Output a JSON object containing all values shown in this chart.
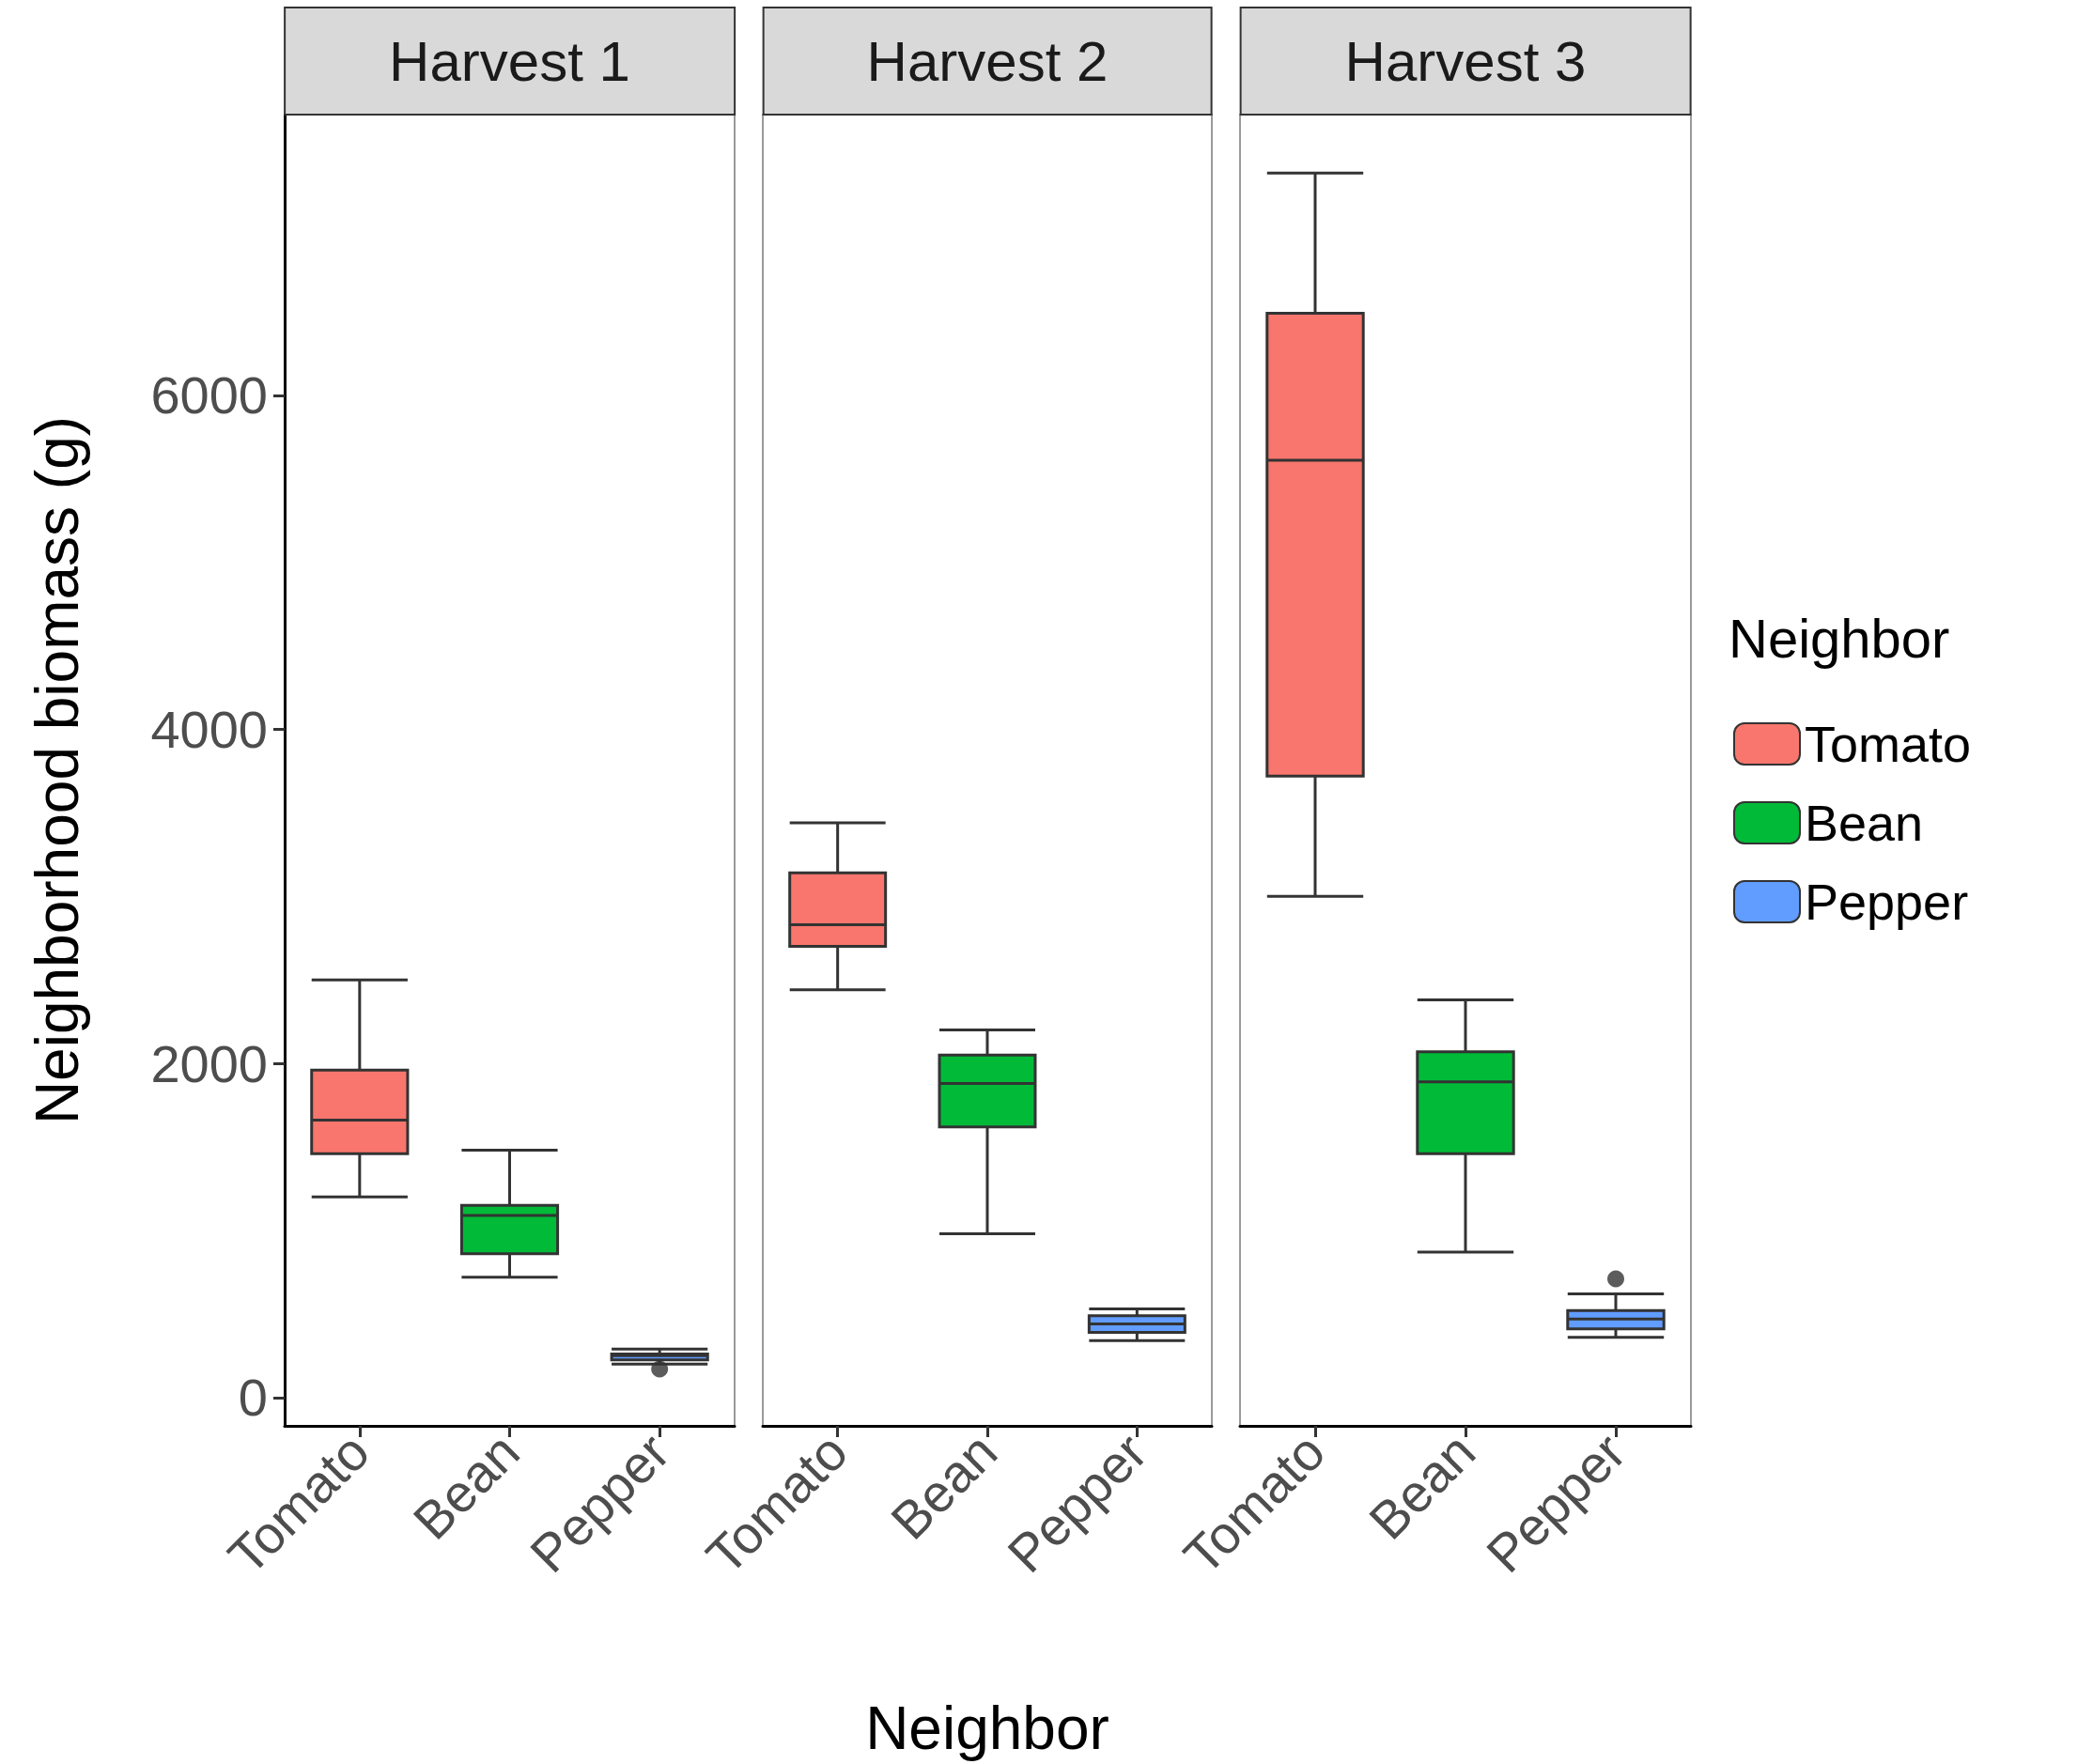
{
  "chart_data": [
    {
      "type": "box",
      "title": "Harvest 1",
      "ylabel": "Neighborhood biomass (g)",
      "categories": [
        "Tomato",
        "Bean",
        "Pepper"
      ],
      "series": [
        {
          "color": "#f8766d",
          "boxes": [
            {
              "low": 1200,
              "q1": 1460,
              "median": 1660,
              "q3": 1960,
              "high": 2500
            },
            null,
            null
          ]
        },
        {
          "color": "#00ba38",
          "boxes": [
            null,
            {
              "low": 720,
              "q1": 860,
              "median": 1090,
              "q3": 1150,
              "high": 1480
            },
            null
          ]
        },
        {
          "color": "#619cff",
          "boxes": [
            null,
            null,
            {
              "low": 200,
              "q1": 225,
              "median": 250,
              "q3": 260,
              "high": 290,
              "outliers": [
                170
              ]
            }
          ]
        }
      ],
      "ylim": [
        -170,
        7680
      ],
      "yticks": [
        0,
        2000,
        4000,
        6000
      ],
      "grid": false,
      "legend": false
    },
    {
      "type": "box",
      "title": "Harvest 2",
      "xlabel": "Neighbor",
      "categories": [
        "Tomato",
        "Bean",
        "Pepper"
      ],
      "series": [
        {
          "color": "#f8766d",
          "boxes": [
            {
              "low": 2440,
              "q1": 2700,
              "median": 2830,
              "q3": 3140,
              "high": 3440
            },
            null,
            null
          ]
        },
        {
          "color": "#00ba38",
          "boxes": [
            null,
            {
              "low": 980,
              "q1": 1620,
              "median": 1880,
              "q3": 2050,
              "high": 2200
            },
            null
          ]
        },
        {
          "color": "#619cff",
          "boxes": [
            null,
            null,
            {
              "low": 340,
              "q1": 390,
              "median": 440,
              "q3": 490,
              "high": 530
            }
          ]
        }
      ],
      "ylim": [
        -170,
        7680
      ],
      "yticks": [
        0,
        2000,
        4000,
        6000
      ],
      "tick_labels": "x",
      "grid": false,
      "legend": false
    },
    {
      "type": "box",
      "title": "Harvest 3",
      "legend_title": "Neighbor",
      "categories": [
        "Tomato",
        "Bean",
        "Pepper"
      ],
      "series": [
        {
          "name": "Tomato",
          "color": "#f8766d",
          "boxes": [
            {
              "low": 3000,
              "q1": 3720,
              "median": 5610,
              "q3": 6490,
              "high": 7330
            },
            null,
            null
          ]
        },
        {
          "name": "Bean",
          "color": "#00ba38",
          "boxes": [
            null,
            {
              "low": 870,
              "q1": 1460,
              "median": 1890,
              "q3": 2070,
              "high": 2380
            },
            null
          ]
        },
        {
          "name": "Pepper",
          "color": "#619cff",
          "boxes": [
            null,
            null,
            {
              "low": 360,
              "q1": 410,
              "median": 470,
              "q3": 520,
              "high": 620,
              "outliers": [
                710
              ]
            }
          ]
        }
      ],
      "ylim": [
        -170,
        7680
      ],
      "yticks": [
        0,
        2000,
        4000,
        6000
      ],
      "tick_labels": "x",
      "grid": false,
      "legend": "right"
    }
  ]
}
